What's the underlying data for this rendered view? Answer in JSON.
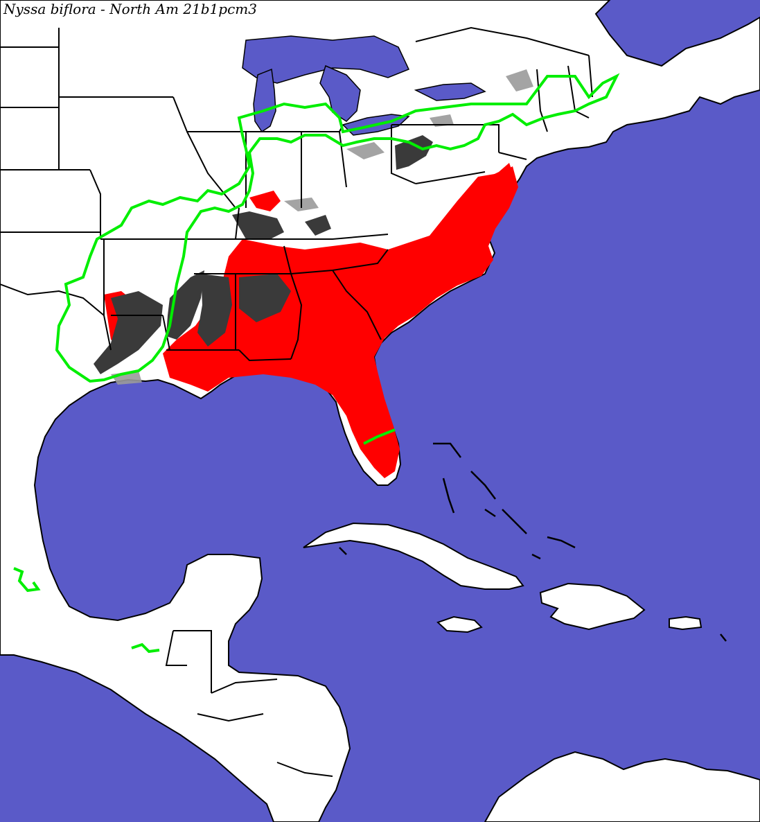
{
  "title": "Nyssa biflora - North Am 21b1pcm3",
  "colors": {
    "water": "#5a5ac8",
    "land": "#ffffff",
    "borders": "#000000",
    "predicted_range": "#ff0000",
    "dark_habitat": "#3a3a3a",
    "gray_habitat": "#9a9a9a",
    "range_outline": "#00ee00"
  }
}
